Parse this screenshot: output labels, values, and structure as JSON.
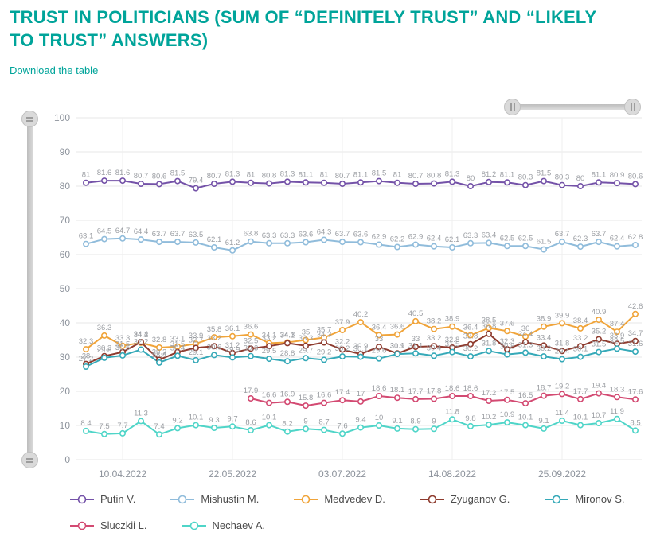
{
  "page": {
    "title": "TRUST IN POLITICIANS (SUM OF “DEFINITELY TRUST” AND “LIKELY TO TRUST” ANSWERS)",
    "download_link": "Download the table",
    "accent_color": "#00a49a"
  },
  "chart_data": {
    "type": "line",
    "title": "TRUST IN POLITICIANS (SUM OF “DEFINITELY TRUST” AND “LIKELY TO TRUST” ANSWERS)",
    "ylim": [
      0,
      100
    ],
    "y_ticks": [
      0,
      10,
      20,
      30,
      40,
      50,
      60,
      70,
      80,
      90,
      100
    ],
    "x_tick_labels": [
      "10.04.2022",
      "22.05.2022",
      "03.07.2022",
      "14.08.2022",
      "25.09.2022"
    ],
    "x_tick_indices": [
      2,
      8,
      14,
      20,
      26
    ],
    "point_count": 31,
    "grid": true,
    "legend_position": "bottom",
    "axis_label_color": "#8d939c",
    "data_label_color": "#9b9ea3",
    "series": [
      {
        "name": "Putin V.",
        "color": "#7452a8",
        "values": [
          81,
          81.6,
          81.6,
          80.7,
          80.6,
          81.5,
          79.4,
          80.7,
          81.3,
          81,
          80.8,
          81.3,
          81.1,
          81,
          80.7,
          81.1,
          81.5,
          81,
          80.7,
          80.8,
          81.3,
          80,
          81.2,
          81.1,
          80.3,
          81.5,
          80.3,
          80,
          81.1,
          80.9,
          80.6
        ]
      },
      {
        "name": "Mishustin M.",
        "color": "#90bcdb",
        "values": [
          63.1,
          64.5,
          64.7,
          64.4,
          63.7,
          63.7,
          63.5,
          62.1,
          61.2,
          63.8,
          63.3,
          63.3,
          63.6,
          64.3,
          63.7,
          63.6,
          62.9,
          62.2,
          62.9,
          62.4,
          62.1,
          63.3,
          63.4,
          62.5,
          62.5,
          61.5,
          63.7,
          62.3,
          63.7,
          62.4,
          62.8
        ]
      },
      {
        "name": "Medvedev D.",
        "color": "#f0a43a",
        "values": [
          32.3,
          36.3,
          33.3,
          34.2,
          32.8,
          33.1,
          33.9,
          35.8,
          36.1,
          36.6,
          34.1,
          34.3,
          35,
          35.7,
          37.9,
          40.2,
          36.4,
          36.6,
          40.5,
          38.2,
          38.9,
          36.4,
          38.5,
          37.6,
          36,
          38.9,
          39.9,
          38.4,
          40.9,
          37.4,
          42.6
        ]
      },
      {
        "name": "Zyuganov G.",
        "color": "#8e3b2e",
        "values": [
          28,
          30.3,
          31.5,
          34.4,
          29.2,
          31.5,
          32.7,
          33.2,
          31.2,
          32.5,
          33.2,
          34.1,
          33.3,
          34.3,
          32.2,
          30.9,
          33,
          31.1,
          33,
          33.2,
          32.8,
          33.8,
          36.8,
          32.3,
          34.4,
          33.4,
          31.8,
          33.2,
          35.2,
          33.9,
          34.7
        ]
      },
      {
        "name": "Mironov S.",
        "color": "#35a9b8",
        "values": [
          27.2,
          29.8,
          30.5,
          32.2,
          28.4,
          30.4,
          29.1,
          30.6,
          29.9,
          30.3,
          29.5,
          28.8,
          29.7,
          29.2,
          30.2,
          30.1,
          29.6,
          30.9,
          31.1,
          30.4,
          31.5,
          30.2,
          31.8,
          30.8,
          31.3,
          30.2,
          29.4,
          30.1,
          31.5,
          32.5,
          31.6
        ]
      },
      {
        "name": "Sluczkii L.",
        "color": "#d34a72",
        "values": [
          null,
          null,
          null,
          null,
          null,
          null,
          null,
          null,
          null,
          17.9,
          16.6,
          16.9,
          15.8,
          16.6,
          17.4,
          17,
          18.6,
          18.1,
          17.7,
          17.8,
          18.6,
          18.6,
          17.2,
          17.5,
          16.5,
          18.7,
          19.2,
          17.7,
          19.4,
          18.3,
          17.6
        ]
      },
      {
        "name": "Nechaev A.",
        "color": "#4fd5c8",
        "values": [
          8.4,
          7.5,
          7.7,
          11.3,
          7.4,
          9.2,
          10.1,
          9.3,
          9.7,
          8.6,
          10.1,
          8.2,
          9,
          8.7,
          7.6,
          9.4,
          10,
          9.1,
          8.9,
          9,
          11.8,
          9.8,
          10.2,
          10.9,
          10.1,
          9.1,
          11.4,
          10.1,
          10.7,
          11.9,
          8.5
        ]
      }
    ]
  }
}
